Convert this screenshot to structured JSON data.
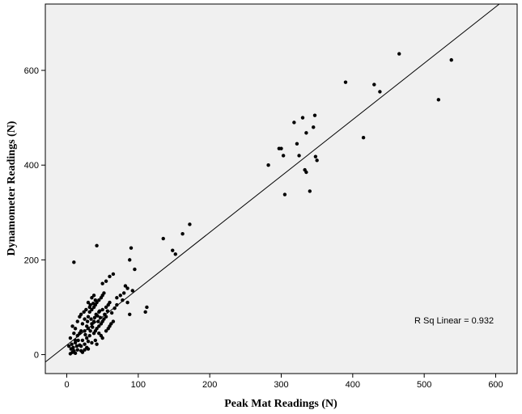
{
  "chart_data": {
    "type": "scatter",
    "xlabel": "Peak Mat Readings (N)",
    "ylabel": "Dynamometer Readings (N)",
    "xlim": [
      -30,
      630
    ],
    "ylim": [
      -40,
      740
    ],
    "xticks": [
      0,
      100,
      200,
      300,
      400,
      500,
      600
    ],
    "yticks": [
      0,
      200,
      400,
      600
    ],
    "grid": false,
    "fit_line": {
      "slope": 1.19,
      "intercept": 20
    },
    "annotation": "R Sq Linear = 0.932",
    "colors": {
      "plot_bg": "#f0f0f0",
      "points": "#000000",
      "line": "#000000"
    },
    "points": [
      [
        5,
        2
      ],
      [
        8,
        5
      ],
      [
        10,
        8
      ],
      [
        12,
        3
      ],
      [
        6,
        12
      ],
      [
        9,
        15
      ],
      [
        15,
        10
      ],
      [
        18,
        20
      ],
      [
        7,
        22
      ],
      [
        12,
        25
      ],
      [
        20,
        18
      ],
      [
        25,
        22
      ],
      [
        22,
        30
      ],
      [
        28,
        35
      ],
      [
        30,
        28
      ],
      [
        35,
        25
      ],
      [
        32,
        40
      ],
      [
        38,
        45
      ],
      [
        40,
        30
      ],
      [
        42,
        22
      ],
      [
        15,
        40
      ],
      [
        18,
        45
      ],
      [
        20,
        50
      ],
      [
        10,
        45
      ],
      [
        12,
        55
      ],
      [
        25,
        50
      ],
      [
        28,
        60
      ],
      [
        30,
        55
      ],
      [
        35,
        65
      ],
      [
        38,
        70
      ],
      [
        22,
        65
      ],
      [
        25,
        75
      ],
      [
        15,
        70
      ],
      [
        18,
        80
      ],
      [
        20,
        85
      ],
      [
        30,
        80
      ],
      [
        32,
        90
      ],
      [
        35,
        95
      ],
      [
        38,
        100
      ],
      [
        40,
        105
      ],
      [
        42,
        110
      ],
      [
        45,
        115
      ],
      [
        48,
        120
      ],
      [
        50,
        125
      ],
      [
        52,
        130
      ],
      [
        35,
        120
      ],
      [
        38,
        125
      ],
      [
        40,
        115
      ],
      [
        30,
        110
      ],
      [
        32,
        100
      ],
      [
        45,
        90
      ],
      [
        50,
        95
      ],
      [
        55,
        100
      ],
      [
        58,
        105
      ],
      [
        60,
        110
      ],
      [
        45,
        60
      ],
      [
        48,
        65
      ],
      [
        50,
        70
      ],
      [
        52,
        75
      ],
      [
        55,
        80
      ],
      [
        55,
        50
      ],
      [
        58,
        55
      ],
      [
        60,
        60
      ],
      [
        62,
        65
      ],
      [
        65,
        70
      ],
      [
        40,
        50
      ],
      [
        42,
        55
      ],
      [
        45,
        45
      ],
      [
        48,
        40
      ],
      [
        50,
        35
      ],
      [
        25,
        10
      ],
      [
        28,
        15
      ],
      [
        30,
        12
      ],
      [
        20,
        8
      ],
      [
        22,
        5
      ],
      [
        10,
        195
      ],
      [
        42,
        230
      ],
      [
        50,
        150
      ],
      [
        55,
        155
      ],
      [
        60,
        165
      ],
      [
        65,
        170
      ],
      [
        70,
        120
      ],
      [
        75,
        125
      ],
      [
        80,
        130
      ],
      [
        85,
        110
      ],
      [
        88,
        200
      ],
      [
        90,
        225
      ],
      [
        95,
        180
      ],
      [
        92,
        135
      ],
      [
        88,
        85
      ],
      [
        110,
        90
      ],
      [
        112,
        100
      ],
      [
        135,
        245
      ],
      [
        148,
        220
      ],
      [
        152,
        212
      ],
      [
        162,
        255
      ],
      [
        172,
        275
      ],
      [
        82,
        145
      ],
      [
        85,
        140
      ],
      [
        78,
        115
      ],
      [
        282,
        400
      ],
      [
        297,
        435
      ],
      [
        300,
        435
      ],
      [
        303,
        420
      ],
      [
        305,
        338
      ],
      [
        318,
        490
      ],
      [
        322,
        445
      ],
      [
        325,
        420
      ],
      [
        330,
        500
      ],
      [
        333,
        390
      ],
      [
        335,
        385
      ],
      [
        335,
        468
      ],
      [
        340,
        345
      ],
      [
        345,
        480
      ],
      [
        347,
        505
      ],
      [
        348,
        418
      ],
      [
        350,
        410
      ],
      [
        390,
        575
      ],
      [
        415,
        458
      ],
      [
        430,
        570
      ],
      [
        438,
        555
      ],
      [
        465,
        635
      ],
      [
        520,
        538
      ],
      [
        538,
        622
      ],
      [
        8,
        60
      ],
      [
        5,
        35
      ],
      [
        12,
        30
      ],
      [
        3,
        18
      ],
      [
        14,
        18
      ],
      [
        16,
        30
      ],
      [
        26,
        42
      ],
      [
        33,
        50
      ],
      [
        36,
        58
      ],
      [
        44,
        70
      ],
      [
        47,
        78
      ],
      [
        53,
        85
      ],
      [
        57,
        92
      ],
      [
        63,
        88
      ],
      [
        67,
        98
      ],
      [
        70,
        105
      ],
      [
        24,
        90
      ],
      [
        27,
        95
      ],
      [
        33,
        105
      ],
      [
        37,
        108
      ],
      [
        41,
        85
      ],
      [
        46,
        92
      ],
      [
        29,
        70
      ],
      [
        34,
        75
      ],
      [
        39,
        78
      ],
      [
        43,
        82
      ]
    ]
  }
}
